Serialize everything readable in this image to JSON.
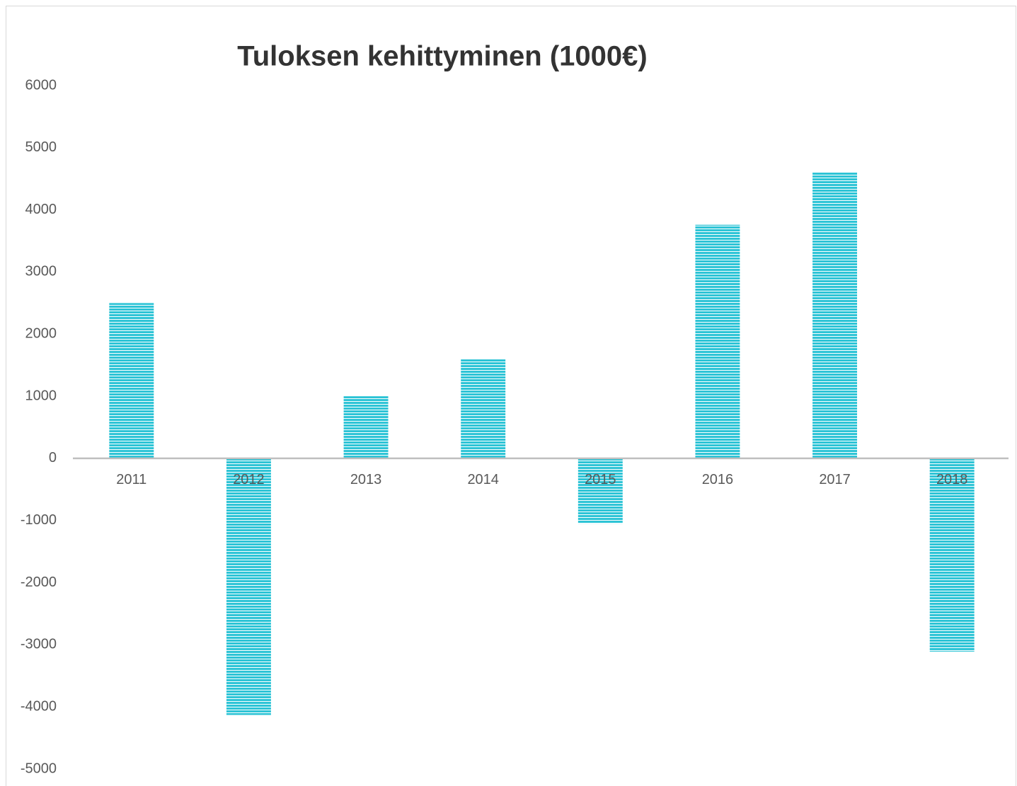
{
  "chart_data": {
    "type": "bar",
    "title": "Tuloksen kehittyminen (1000€)",
    "categories": [
      "2011",
      "2012",
      "2013",
      "2014",
      "2015",
      "2016",
      "2017",
      "2018"
    ],
    "values": [
      2500,
      -4130,
      1000,
      1600,
      -1050,
      3760,
      4610,
      -3110
    ],
    "color": "#2ec4d6",
    "ylim": [
      -5000,
      6000
    ],
    "yticks": [
      -5000,
      -4000,
      -3000,
      -2000,
      -1000,
      0,
      1000,
      2000,
      3000,
      4000,
      5000,
      6000
    ],
    "grid": false
  }
}
